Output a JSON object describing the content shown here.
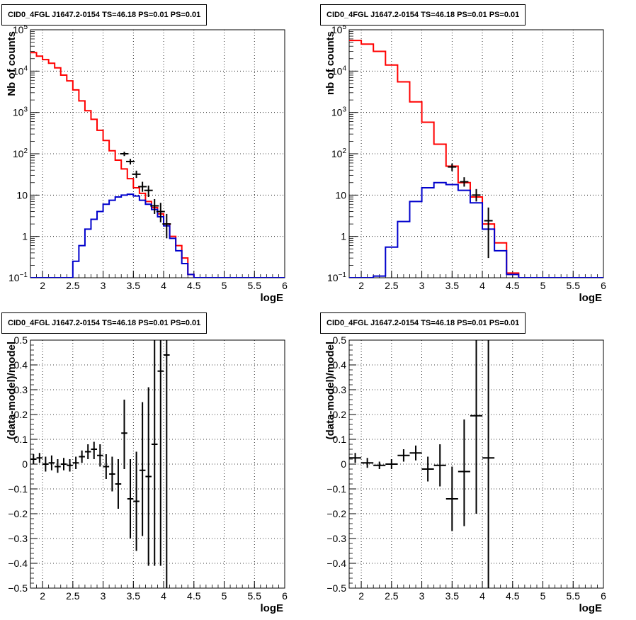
{
  "chart_data": [
    {
      "type": "histogram",
      "title": "CID0_4FGL J1647.2-0154 TS=46.18 PS=0.01 PS=0.01",
      "xlabel": "logE",
      "ylabel": "Nb of counts",
      "yscale": "log",
      "xlim": [
        1.8,
        6.0
      ],
      "ylim": [
        0.1,
        100000
      ],
      "xticks": [
        "2",
        "2.5",
        "3",
        "3.5",
        "4",
        "4.5",
        "5",
        "5.5",
        "6"
      ],
      "grid": true,
      "series": [
        {
          "color": "#ff0000",
          "style": "step",
          "edges": [
            1.8,
            1.9,
            2.0,
            2.1,
            2.2,
            2.3,
            2.4,
            2.5,
            2.6,
            2.7,
            2.8,
            2.9,
            3.0,
            3.1,
            3.2,
            3.3,
            3.4,
            3.5,
            3.6,
            3.7,
            3.8,
            3.9,
            4.0,
            4.1,
            4.2,
            4.3,
            4.4,
            4.5,
            4.6,
            4.7,
            4.8,
            4.9,
            5.0,
            5.1,
            5.2,
            5.3,
            5.4,
            5.5,
            5.6,
            5.7,
            5.8,
            5.9,
            6.0
          ],
          "values": [
            28000,
            23000,
            19000,
            15500,
            12000,
            8000,
            5800,
            3500,
            1900,
            1100,
            680,
            370,
            210,
            118,
            70,
            43,
            25,
            15,
            11,
            7,
            5,
            3.5,
            2,
            1,
            0.6,
            0.3,
            0.12,
            0.1,
            0.1,
            0.1,
            0.1,
            0.1,
            0.1,
            0.1,
            0.1,
            0.1,
            0.1,
            0.1,
            0.1,
            0.1,
            0.1,
            0.1
          ]
        },
        {
          "color": "#0000cc",
          "style": "step",
          "edges": [
            1.8,
            1.9,
            2.0,
            2.1,
            2.2,
            2.3,
            2.4,
            2.5,
            2.6,
            2.7,
            2.8,
            2.9,
            3.0,
            3.1,
            3.2,
            3.3,
            3.4,
            3.5,
            3.6,
            3.7,
            3.8,
            3.9,
            4.0,
            4.1,
            4.2,
            4.3,
            4.4,
            4.5,
            4.6,
            4.7,
            4.8,
            4.9,
            5.0,
            5.1,
            5.2,
            5.3,
            5.4,
            5.5,
            5.6,
            5.7,
            5.8,
            5.9,
            6.0
          ],
          "values": [
            0.1,
            0.1,
            0.1,
            0.1,
            0.1,
            0.1,
            0.1,
            0.25,
            0.6,
            1.5,
            2.6,
            4.0,
            6.0,
            7.5,
            9.0,
            10.0,
            10.5,
            9.5,
            7.5,
            6.0,
            4.5,
            3.0,
            1.8,
            0.9,
            0.45,
            0.22,
            0.12,
            0.1,
            0.1,
            0.1,
            0.1,
            0.1,
            0.1,
            0.1,
            0.1,
            0.1,
            0.1,
            0.1,
            0.1,
            0.1,
            0.1,
            0.1
          ]
        },
        {
          "color": "#000000",
          "style": "points",
          "points": [
            {
              "x": 3.35,
              "y": 100,
              "ylo": 88,
              "yhi": 112
            },
            {
              "x": 3.45,
              "y": 65,
              "ylo": 55,
              "yhi": 75
            },
            {
              "x": 3.55,
              "y": 32,
              "ylo": 26,
              "yhi": 39
            },
            {
              "x": 3.65,
              "y": 16,
              "ylo": 12,
              "yhi": 21
            },
            {
              "x": 3.75,
              "y": 13,
              "ylo": 9,
              "yhi": 17
            },
            {
              "x": 3.85,
              "y": 5.5,
              "ylo": 3.5,
              "yhi": 8
            },
            {
              "x": 3.95,
              "y": 4,
              "ylo": 2.2,
              "yhi": 6.5
            },
            {
              "x": 4.05,
              "y": 2,
              "ylo": 0.9,
              "yhi": 3.5
            }
          ]
        }
      ]
    },
    {
      "type": "histogram",
      "title": "CID0_4FGL J1647.2-0154 TS=46.18 PS=0.01 PS=0.01",
      "xlabel": "logE",
      "ylabel": "nb of counts",
      "yscale": "log",
      "xlim": [
        1.8,
        6.0
      ],
      "ylim": [
        0.1,
        100000
      ],
      "xticks": [
        "2",
        "2.5",
        "3",
        "3.5",
        "4",
        "4.5",
        "5",
        "5.5",
        "6"
      ],
      "grid": true,
      "series": [
        {
          "color": "#ff0000",
          "style": "step",
          "edges": [
            1.8,
            2.0,
            2.2,
            2.4,
            2.6,
            2.8,
            3.0,
            3.2,
            3.4,
            3.6,
            3.8,
            4.0,
            4.2,
            4.4,
            4.6,
            4.8,
            5.0,
            5.2,
            5.4,
            5.6,
            5.8,
            6.0
          ],
          "values": [
            55000,
            45000,
            30000,
            14000,
            5500,
            1800,
            580,
            170,
            50,
            20,
            9,
            2,
            0.7,
            0.13,
            0.1,
            0.1,
            0.1,
            0.1,
            0.1,
            0.1,
            0.1
          ]
        },
        {
          "color": "#0000cc",
          "style": "step",
          "edges": [
            1.8,
            2.0,
            2.2,
            2.4,
            2.6,
            2.8,
            3.0,
            3.2,
            3.4,
            3.6,
            3.8,
            4.0,
            4.2,
            4.4,
            4.6,
            4.8,
            5.0,
            5.2,
            5.4,
            5.6,
            5.8,
            6.0
          ],
          "values": [
            0.1,
            0.1,
            0.11,
            0.55,
            2.3,
            7,
            15,
            20,
            18,
            13,
            6.5,
            1.5,
            0.45,
            0.12,
            0.1,
            0.1,
            0.1,
            0.1,
            0.1,
            0.1,
            0.1
          ]
        },
        {
          "color": "#000000",
          "style": "points",
          "points": [
            {
              "x": 3.5,
              "y": 48,
              "ylo": 38,
              "yhi": 58
            },
            {
              "x": 3.7,
              "y": 21,
              "ylo": 16,
              "yhi": 27
            },
            {
              "x": 3.9,
              "y": 10,
              "ylo": 7,
              "yhi": 14
            },
            {
              "x": 4.1,
              "y": 2.4,
              "ylo": 0.3,
              "yhi": 5
            }
          ]
        }
      ]
    },
    {
      "type": "scatter",
      "title": "CID0_4FGL J1647.2-0154 TS=46.18 PS=0.01 PS=0.01",
      "xlabel": "logE",
      "ylabel": "(data-model)/model",
      "xlim": [
        1.8,
        6.0
      ],
      "ylim": [
        -0.5,
        0.5
      ],
      "xticks": [
        "2",
        "2.5",
        "3",
        "3.5",
        "4",
        "4.5",
        "5",
        "5.5",
        "6"
      ],
      "yticks": [
        "−0.5",
        "−0.4",
        "−0.3",
        "−0.2",
        "−0.1",
        "0",
        "0.1",
        "0.2",
        "0.3",
        "0.4",
        "0.5"
      ],
      "grid": true,
      "xerr": 0.05,
      "points": [
        {
          "x": 1.85,
          "y": 0.02,
          "ylo": 0.0,
          "yhi": 0.04
        },
        {
          "x": 1.95,
          "y": 0.025,
          "ylo": 0.005,
          "yhi": 0.045
        },
        {
          "x": 2.05,
          "y": 0.0,
          "ylo": -0.03,
          "yhi": 0.03
        },
        {
          "x": 2.15,
          "y": 0.005,
          "ylo": -0.025,
          "yhi": 0.035
        },
        {
          "x": 2.25,
          "y": -0.01,
          "ylo": -0.035,
          "yhi": 0.02
        },
        {
          "x": 2.35,
          "y": 0.0,
          "ylo": -0.025,
          "yhi": 0.025
        },
        {
          "x": 2.45,
          "y": -0.005,
          "ylo": -0.03,
          "yhi": 0.02
        },
        {
          "x": 2.55,
          "y": 0.005,
          "ylo": -0.02,
          "yhi": 0.03
        },
        {
          "x": 2.65,
          "y": 0.03,
          "ylo": 0.005,
          "yhi": 0.055
        },
        {
          "x": 2.75,
          "y": 0.05,
          "ylo": 0.02,
          "yhi": 0.08
        },
        {
          "x": 2.85,
          "y": 0.06,
          "ylo": 0.02,
          "yhi": 0.09
        },
        {
          "x": 2.95,
          "y": 0.035,
          "ylo": -0.01,
          "yhi": 0.08
        },
        {
          "x": 3.05,
          "y": -0.01,
          "ylo": -0.06,
          "yhi": 0.04
        },
        {
          "x": 3.15,
          "y": -0.04,
          "ylo": -0.11,
          "yhi": 0.03
        },
        {
          "x": 3.25,
          "y": -0.08,
          "ylo": -0.18,
          "yhi": 0.02
        },
        {
          "x": 3.35,
          "y": 0.125,
          "ylo": -0.02,
          "yhi": 0.26
        },
        {
          "x": 3.45,
          "y": -0.14,
          "ylo": -0.3,
          "yhi": 0.02
        },
        {
          "x": 3.55,
          "y": -0.15,
          "ylo": -0.35,
          "yhi": 0.05
        },
        {
          "x": 3.65,
          "y": -0.025,
          "ylo": -0.29,
          "yhi": 0.25
        },
        {
          "x": 3.75,
          "y": -0.05,
          "ylo": -0.41,
          "yhi": 0.31
        },
        {
          "x": 3.85,
          "y": 0.08,
          "ylo": -0.41,
          "yhi": 0.5
        },
        {
          "x": 3.95,
          "y": 0.375,
          "ylo": -0.41,
          "yhi": 0.5
        },
        {
          "x": 4.05,
          "y": 0.44,
          "ylo": -0.5,
          "yhi": 0.5
        }
      ]
    },
    {
      "type": "scatter",
      "title": "CID0_4FGL J1647.2-0154 TS=46.18 PS=0.01 PS=0.01",
      "xlabel": "logE",
      "ylabel": "(data-model)/model",
      "xlim": [
        1.8,
        6.0
      ],
      "ylim": [
        -0.5,
        0.5
      ],
      "xticks": [
        "2",
        "2.5",
        "3",
        "3.5",
        "4",
        "4.5",
        "5",
        "5.5",
        "6"
      ],
      "yticks": [
        "−0.5",
        "−0.4",
        "−0.3",
        "−0.2",
        "−0.1",
        "0",
        "0.1",
        "0.2",
        "0.3",
        "0.4",
        "0.5"
      ],
      "grid": true,
      "xerr": 0.1,
      "points": [
        {
          "x": 1.9,
          "y": 0.025,
          "ylo": 0.005,
          "yhi": 0.045
        },
        {
          "x": 2.1,
          "y": 0.005,
          "ylo": -0.015,
          "yhi": 0.025
        },
        {
          "x": 2.3,
          "y": -0.005,
          "ylo": -0.02,
          "yhi": 0.01
        },
        {
          "x": 2.5,
          "y": 0.0,
          "ylo": -0.02,
          "yhi": 0.02
        },
        {
          "x": 2.7,
          "y": 0.035,
          "ylo": 0.01,
          "yhi": 0.06
        },
        {
          "x": 2.9,
          "y": 0.045,
          "ylo": 0.015,
          "yhi": 0.075
        },
        {
          "x": 3.1,
          "y": -0.02,
          "ylo": -0.07,
          "yhi": 0.03
        },
        {
          "x": 3.3,
          "y": -0.005,
          "ylo": -0.09,
          "yhi": 0.08
        },
        {
          "x": 3.5,
          "y": -0.14,
          "ylo": -0.27,
          "yhi": -0.01
        },
        {
          "x": 3.7,
          "y": -0.03,
          "ylo": -0.25,
          "yhi": 0.18
        },
        {
          "x": 3.9,
          "y": 0.195,
          "ylo": -0.2,
          "yhi": 0.5
        },
        {
          "x": 4.1,
          "y": 0.025,
          "ylo": -0.5,
          "yhi": 0.5
        }
      ]
    }
  ]
}
